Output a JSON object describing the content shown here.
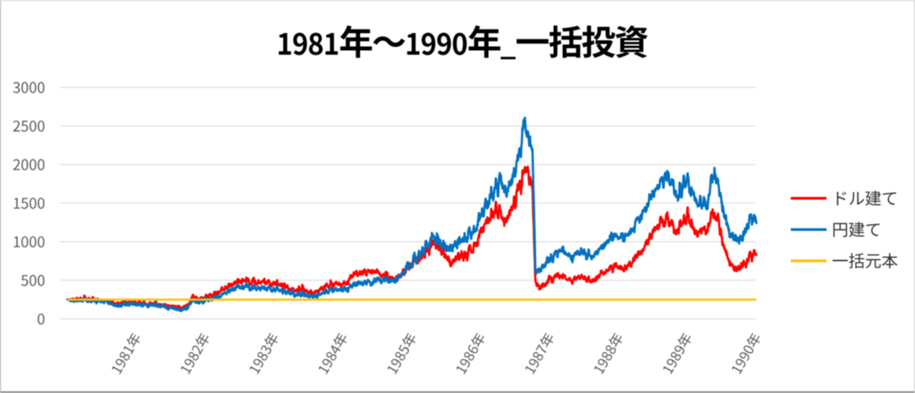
{
  "chart_data": {
    "type": "line",
    "title": "1981年～1990年_一括投資",
    "xlabel": "",
    "ylabel": "",
    "x_unit": "decimal_year",
    "xlim": [
      1981.0,
      1991.0
    ],
    "ylim": [
      0,
      3000
    ],
    "grid": "horizontal",
    "legend_position": "right",
    "x_tick_labels": [
      "1981年",
      "1982年",
      "1983年",
      "1984年",
      "1985年",
      "1986年",
      "1987年",
      "1988年",
      "1989年",
      "1990年"
    ],
    "y_ticks": [
      0,
      500,
      1000,
      1500,
      2000,
      2500,
      3000
    ],
    "x": [
      1981.0,
      1981.0417,
      1981.0833,
      1981.125,
      1981.1667,
      1981.2083,
      1981.25,
      1981.2917,
      1981.3333,
      1981.375,
      1981.4167,
      1981.4583,
      1981.5,
      1981.5417,
      1981.5833,
      1981.625,
      1981.6667,
      1981.7083,
      1981.75,
      1981.7917,
      1981.8333,
      1981.875,
      1981.9167,
      1981.9583,
      1982.0,
      1982.0417,
      1982.0833,
      1982.125,
      1982.1667,
      1982.2083,
      1982.25,
      1982.2917,
      1982.3333,
      1982.375,
      1982.4167,
      1982.4583,
      1982.5,
      1982.5417,
      1982.5833,
      1982.625,
      1982.6667,
      1982.7083,
      1982.75,
      1982.7917,
      1982.8333,
      1982.875,
      1982.9167,
      1982.9583,
      1983.0,
      1983.0417,
      1983.0833,
      1983.125,
      1983.1667,
      1983.2083,
      1983.25,
      1983.2917,
      1983.3333,
      1983.375,
      1983.4167,
      1983.4583,
      1983.5,
      1983.5417,
      1983.5833,
      1983.625,
      1983.6667,
      1983.7083,
      1983.75,
      1983.7917,
      1983.8333,
      1983.875,
      1983.9167,
      1983.9583,
      1984.0,
      1984.0417,
      1984.0833,
      1984.125,
      1984.1667,
      1984.2083,
      1984.25,
      1984.2917,
      1984.3333,
      1984.375,
      1984.4167,
      1984.4583,
      1984.5,
      1984.5417,
      1984.5833,
      1984.625,
      1984.6667,
      1984.7083,
      1984.75,
      1984.7917,
      1984.8333,
      1984.875,
      1984.9167,
      1984.9583,
      1985.0,
      1985.0417,
      1985.0833,
      1985.125,
      1985.1667,
      1985.2083,
      1985.25,
      1985.2917,
      1985.3333,
      1985.375,
      1985.4167,
      1985.4583,
      1985.5,
      1985.5417,
      1985.5833,
      1985.625,
      1985.6667,
      1985.7083,
      1985.75,
      1985.7917,
      1985.8333,
      1985.875,
      1985.9167,
      1985.9583,
      1986.0,
      1986.0417,
      1986.0833,
      1986.125,
      1986.1667,
      1986.2083,
      1986.25,
      1986.2917,
      1986.3333,
      1986.375,
      1986.4167,
      1986.4583,
      1986.5,
      1986.5417,
      1986.5833,
      1986.625,
      1986.6667,
      1986.7083,
      1986.75,
      1986.7917,
      1986.8333,
      1986.875,
      1986.9167,
      1986.9583,
      1987.0,
      1987.0417,
      1987.0833,
      1987.125,
      1987.1667,
      1987.2083,
      1987.25,
      1987.2917,
      1987.3333,
      1987.375,
      1987.4167,
      1987.4583,
      1987.5,
      1987.5417,
      1987.5833,
      1987.625,
      1987.6667,
      1987.7083,
      1987.75,
      1987.7917,
      1987.8333,
      1987.875,
      1987.9167,
      1987.9583,
      1988.0,
      1988.0417,
      1988.0833,
      1988.125,
      1988.1667,
      1988.2083,
      1988.25,
      1988.2917,
      1988.3333,
      1988.375,
      1988.4167,
      1988.4583,
      1988.5,
      1988.5417,
      1988.5833,
      1988.625,
      1988.6667,
      1988.7083,
      1988.75,
      1988.7917,
      1988.8333,
      1988.875,
      1988.9167,
      1988.9583,
      1989.0,
      1989.0417,
      1989.0833,
      1989.125,
      1989.1667,
      1989.2083,
      1989.25,
      1989.2917,
      1989.3333,
      1989.375,
      1989.4167,
      1989.4583,
      1989.5,
      1989.5417,
      1989.5833,
      1989.625,
      1989.6667,
      1989.7083,
      1989.75,
      1989.7917,
      1989.8333,
      1989.875,
      1989.9167,
      1989.9583,
      1990.0,
      1990.0417,
      1990.0833,
      1990.125,
      1990.1667,
      1990.2083,
      1990.25,
      1990.2917,
      1990.3333,
      1990.375,
      1990.4167,
      1990.4583,
      1990.5,
      1990.5417,
      1990.5833,
      1990.625,
      1990.6667,
      1990.7083,
      1990.75,
      1990.7917,
      1990.8333,
      1990.875,
      1990.9167,
      1990.9583,
      1991.0
    ],
    "series": [
      {
        "name": "ドル建て",
        "color": "#FF0000",
        "values": [
          250,
          249,
          248,
          252,
          256,
          259,
          263,
          260,
          257,
          252,
          248,
          246,
          243,
          239,
          235,
          224,
          213,
          202,
          200,
          210,
          218,
          220,
          223,
          219,
          214,
          209,
          205,
          200,
          196,
          199,
          203,
          196,
          190,
          184,
          178,
          172,
          166,
          157,
          148,
          143,
          144,
          158,
          185,
          252,
          292,
          275,
          249,
          262,
          280,
          293,
          306,
          318,
          331,
          351,
          372,
          398,
          424,
          444,
          463,
          477,
          490,
          495,
          499,
          490,
          481,
          475,
          470,
          474,
          477,
          470,
          463,
          459,
          455,
          447,
          439,
          432,
          426,
          400,
          372,
          376,
          380,
          385,
          390,
          368,
          345,
          337,
          332,
          351,
          370,
          400,
          430,
          438,
          446,
          452,
          459,
          456,
          452,
          460,
          475,
          558,
          605,
          596,
          588,
          599,
          610,
          616,
          622,
          611,
          600,
          589,
          576,
          554,
          534,
          520,
          506,
          534,
          562,
          593,
          628,
          669,
          705,
          737,
          769,
          802,
          834,
          871,
          925,
          979,
          973,
          951,
          912,
          846,
          780,
          746,
          719,
          774,
          820,
          821,
          821,
          823,
          860,
          896,
          932,
          1028,
          1130,
          1182,
          1235,
          1298,
          1360,
          1382,
          1400,
          1400,
          1289,
          1243,
          1364,
          1475,
          1550,
          1657,
          1770,
          1962,
          1886,
          1808,
          1722,
          475,
          428,
          399,
          441,
          485,
          518,
          531,
          543,
          555,
          563,
          541,
          520,
          504,
          507,
          525,
          538,
          543,
          532,
          515,
          495,
          480,
          516,
          550,
          577,
          604,
          630,
          655,
          680,
          674,
          666,
          661,
          659,
          678,
          698,
          746,
          794,
          841,
          885,
          928,
          994,
          1062,
          1122,
          1176,
          1215,
          1250,
          1283,
          1280,
          1229,
          1185,
          1148,
          1195,
          1257,
          1303,
          1348,
          1271,
          1195,
          1133,
          1108,
          1141,
          1164,
          1184,
          1284,
          1404,
          1333,
          1224,
          1065,
          918,
          802,
          708,
          653,
          659,
          671,
          671,
          712,
          762,
          813,
          835,
          856
        ]
      },
      {
        "name": "円建て",
        "color": "#0070C0",
        "values": [
          250,
          237,
          230,
          236,
          233,
          236,
          240,
          237,
          235,
          233,
          231,
          230,
          228,
          225,
          221,
          207,
          193,
          178,
          175,
          186,
          196,
          198,
          201,
          197,
          192,
          188,
          185,
          182,
          178,
          182,
          186,
          179,
          171,
          165,
          159,
          152,
          146,
          135,
          123,
          114,
          113,
          127,
          150,
          213,
          250,
          234,
          210,
          221,
          236,
          246,
          257,
          268,
          279,
          295,
          312,
          335,
          357,
          376,
          395,
          405,
          415,
          418,
          419,
          410,
          402,
          397,
          392,
          395,
          398,
          393,
          388,
          385,
          381,
          373,
          365,
          358,
          351,
          337,
          323,
          322,
          321,
          320,
          318,
          307,
          296,
          288,
          282,
          296,
          310,
          334,
          360,
          366,
          371,
          376,
          380,
          379,
          377,
          382,
          390,
          435,
          461,
          459,
          456,
          463,
          470,
          474,
          478,
          490,
          504,
          508,
          511,
          502,
          495,
          493,
          491,
          520,
          550,
          597,
          643,
          684,
          727,
          771,
          814,
          854,
          891,
          931,
          988,
          1045,
          1041,
          1022,
          989,
          935,
          882,
          894,
          909,
          956,
          999,
          1017,
          1035,
          1053,
          1078,
          1103,
          1128,
          1236,
          1352,
          1404,
          1458,
          1537,
          1616,
          1702,
          1790,
          1798,
          1689,
          1631,
          1714,
          1808,
          1950,
          2080,
          2230,
          2605,
          2382,
          2326,
          2177,
          656,
          624,
          649,
          701,
          744,
          772,
          803,
          835,
          877,
          907,
          874,
          842,
          810,
          810,
          835,
          853,
          862,
          851,
          834,
          814,
          801,
          840,
          879,
          916,
          954,
          996,
          1042,
          1091,
          1079,
          1062,
          1055,
          1051,
          1085,
          1119,
          1178,
          1236,
          1291,
          1350,
          1411,
          1478,
          1544,
          1603,
          1664,
          1727,
          1785,
          1841,
          1841,
          1769,
          1694,
          1615,
          1655,
          1717,
          1763,
          1808,
          1711,
          1616,
          1535,
          1489,
          1498,
          1512,
          1529,
          1707,
          1926,
          1840,
          1701,
          1514,
          1338,
          1190,
          1084,
          1052,
          1070,
          1056,
          1029,
          1124,
          1211,
          1282,
          1297,
          1312
        ]
      },
      {
        "name": "一括元本",
        "color": "#FFC000",
        "constant": 250
      }
    ],
    "style": {
      "background": "#FFFFFF",
      "border_color": "#ABABAB",
      "grid_color": "#D9D9D9",
      "axis_text_color": "#595959",
      "title_color": "#000000",
      "legend_text_color": "#333333"
    }
  }
}
